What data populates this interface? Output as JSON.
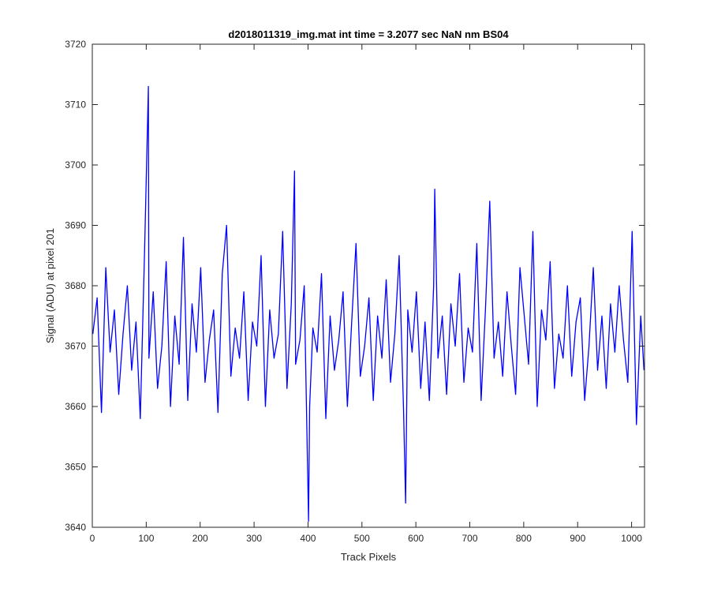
{
  "chart_data": {
    "type": "line",
    "title": "d2018011319_img.mat int time = 3.2077 sec  NaN nm BS04",
    "xlabel": "Track Pixels",
    "ylabel": "Signal (ADU) at pixel 201",
    "xlim": [
      0,
      1024
    ],
    "ylim": [
      3640,
      3720
    ],
    "xticks": [
      0,
      100,
      200,
      300,
      400,
      500,
      600,
      700,
      800,
      900,
      1000
    ],
    "yticks": [
      3640,
      3650,
      3660,
      3670,
      3680,
      3690,
      3700,
      3710,
      3720
    ],
    "grid": false,
    "legend": "none",
    "series": [
      {
        "color": "#0000ff",
        "sampling": "every 8th pixel (approximate trace of 1024 samples)",
        "x": [
          1,
          9,
          17,
          25,
          33,
          41,
          49,
          57,
          65,
          73,
          81,
          89,
          97,
          104,
          105,
          113,
          121,
          129,
          137,
          145,
          153,
          161,
          169,
          177,
          185,
          193,
          201,
          209,
          217,
          225,
          233,
          241,
          249,
          257,
          265,
          273,
          281,
          289,
          297,
          305,
          313,
          321,
          329,
          337,
          345,
          353,
          361,
          369,
          375,
          377,
          385,
          393,
          401,
          403,
          409,
          417,
          425,
          433,
          441,
          449,
          457,
          465,
          473,
          481,
          489,
          497,
          505,
          513,
          521,
          529,
          537,
          545,
          553,
          561,
          569,
          577,
          581,
          585,
          593,
          601,
          609,
          617,
          625,
          633,
          635,
          641,
          649,
          657,
          665,
          673,
          681,
          689,
          697,
          705,
          713,
          721,
          729,
          737,
          745,
          753,
          761,
          769,
          777,
          785,
          793,
          801,
          809,
          817,
          825,
          833,
          841,
          849,
          857,
          865,
          873,
          881,
          889,
          897,
          905,
          913,
          921,
          929,
          937,
          945,
          953,
          961,
          969,
          977,
          985,
          993,
          1001,
          1009,
          1017,
          1023
        ],
        "values": [
          3672,
          3678,
          3659,
          3683,
          3669,
          3676,
          3662,
          3672,
          3680,
          3666,
          3674,
          3658,
          3686,
          3713,
          3668,
          3679,
          3663,
          3670,
          3684,
          3660,
          3675,
          3667,
          3688,
          3661,
          3677,
          3669,
          3683,
          3664,
          3671,
          3676,
          3659,
          3682,
          3690,
          3665,
          3673,
          3668,
          3679,
          3661,
          3674,
          3670,
          3685,
          3660,
          3676,
          3668,
          3672,
          3689,
          3663,
          3677,
          3699,
          3667,
          3671,
          3680,
          3641,
          3660,
          3673,
          3669,
          3682,
          3658,
          3675,
          3666,
          3671,
          3679,
          3660,
          3674,
          3687,
          3665,
          3670,
          3678,
          3661,
          3675,
          3668,
          3681,
          3664,
          3672,
          3685,
          3660,
          3644,
          3676,
          3669,
          3679,
          3663,
          3674,
          3661,
          3680,
          3696,
          3668,
          3675,
          3662,
          3677,
          3670,
          3682,
          3664,
          3673,
          3669,
          3687,
          3661,
          3676,
          3694,
          3668,
          3674,
          3665,
          3679,
          3670,
          3662,
          3683,
          3675,
          3667,
          3689,
          3660,
          3676,
          3671,
          3684,
          3663,
          3672,
          3668,
          3680,
          3665,
          3674,
          3678,
          3661,
          3670,
          3683,
          3666,
          3675,
          3663,
          3677,
          3669,
          3680,
          3671,
          3664,
          3689,
          3657,
          3675,
          3666
        ]
      }
    ]
  }
}
